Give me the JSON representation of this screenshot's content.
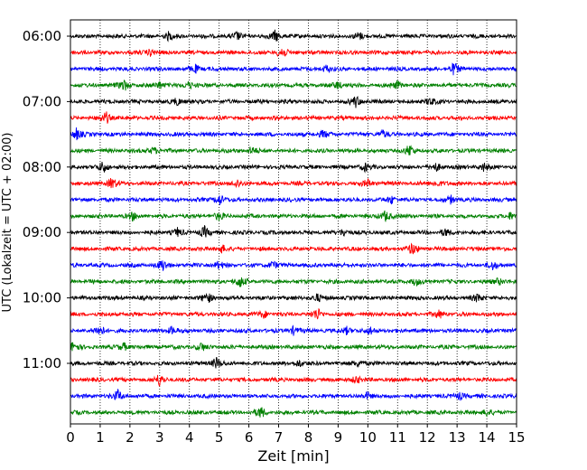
{
  "chart_data": {
    "type": "line",
    "chart_kind": "helicorder / seismogram drum plot",
    "xlabel": "Zeit  [min]",
    "ylabel": "UTC (Lokalzeit = UTC + 02:00)",
    "xlim": [
      0,
      15
    ],
    "x_ticks": [
      "0",
      "1",
      "2",
      "3",
      "4",
      "5",
      "6",
      "7",
      "8",
      "9",
      "10",
      "11",
      "12",
      "13",
      "14",
      "15"
    ],
    "y_tick_labels": [
      "06:00",
      "07:00",
      "08:00",
      "09:00",
      "10:00",
      "11:00"
    ],
    "grid": "vertical dotted lines at each minute",
    "trace_color_cycle": [
      "#000000",
      "#ff0000",
      "#0000ff",
      "#008000"
    ],
    "trace_start_times": [
      "06:00",
      "06:15",
      "06:30",
      "06:45",
      "07:00",
      "07:15",
      "07:30",
      "07:45",
      "08:00",
      "08:15",
      "08:30",
      "08:45",
      "09:00",
      "09:15",
      "09:30",
      "09:45",
      "10:00",
      "10:15",
      "10:30",
      "10:45",
      "11:00",
      "11:15",
      "11:30",
      "11:45"
    ],
    "bursts_min": [
      [
        6.9,
        5.6,
        3.3,
        9.7
      ],
      [
        7.1,
        2.7
      ],
      [
        12.9,
        8.6,
        4.2
      ],
      [
        1.8,
        9.0,
        4.0,
        11.0,
        3.0
      ],
      [
        9.6,
        3.6,
        12.1
      ],
      [
        1.2
      ],
      [
        0.2,
        8.5,
        10.5
      ],
      [
        11.4,
        6.1,
        2.8
      ],
      [
        1.1,
        12.3,
        9.9,
        13.9
      ],
      [
        1.4,
        10.0,
        5.6,
        12.3
      ],
      [
        5.0,
        10.8,
        12.8
      ],
      [
        10.6,
        14.8,
        5.0,
        2.1
      ],
      [
        4.5,
        9.2,
        3.6,
        12.6
      ],
      [
        11.5,
        5.1
      ],
      [
        3.1,
        5.0,
        6.8,
        14.2
      ],
      [
        5.7,
        14.4,
        11.6
      ],
      [
        4.6,
        13.7,
        8.3
      ],
      [
        8.3,
        12.4,
        6.5
      ],
      [
        1.0,
        3.4,
        10.1,
        7.5,
        9.3
      ],
      [
        0.1,
        4.4,
        1.8
      ],
      [
        4.9,
        9.7,
        7.7
      ],
      [
        3.0,
        9.6
      ],
      [
        1.6,
        13.1,
        10.0
      ],
      [
        6.4,
        14.0
      ]
    ]
  }
}
